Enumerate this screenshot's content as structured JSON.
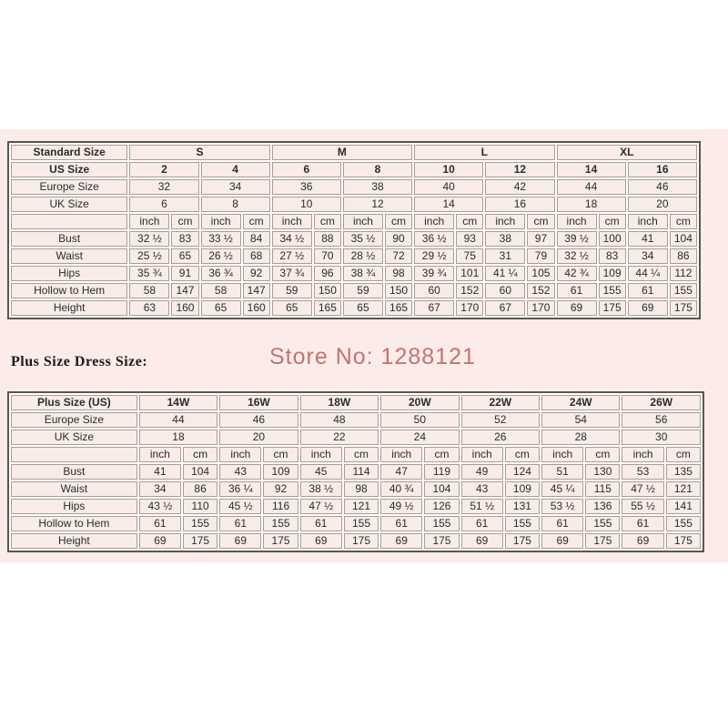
{
  "colors": {
    "panel_bg": "#fcece9",
    "cell_bg": "#f9ece8",
    "grid": "#a89d96",
    "table_border": "#5a5550",
    "watermark": "#c17470"
  },
  "watermark": {
    "text": "Store No: 1288121"
  },
  "plus_heading": "Plus Size Dress Size:",
  "units": {
    "inch": "inch",
    "cm": "cm"
  },
  "standard_table": {
    "corner_label": "Standard Size",
    "group_headers": [
      "S",
      "M",
      "L",
      "XL"
    ],
    "rows_header": [
      {
        "label": "US Size",
        "bold": true,
        "values": [
          "2",
          "4",
          "6",
          "8",
          "10",
          "12",
          "14",
          "16"
        ]
      },
      {
        "label": "Europe Size",
        "bold": false,
        "values": [
          "32",
          "34",
          "36",
          "38",
          "40",
          "42",
          "44",
          "46"
        ]
      },
      {
        "label": "UK Size",
        "bold": false,
        "values": [
          "6",
          "8",
          "10",
          "12",
          "14",
          "16",
          "18",
          "20"
        ]
      }
    ],
    "measure_rows": [
      {
        "label": "Bust",
        "values": [
          "32 ½",
          "83",
          "33 ½",
          "84",
          "34 ½",
          "88",
          "35 ½",
          "90",
          "36 ½",
          "93",
          "38",
          "97",
          "39 ½",
          "100",
          "41",
          "104"
        ]
      },
      {
        "label": "Waist",
        "values": [
          "25 ½",
          "65",
          "26 ½",
          "68",
          "27 ½",
          "70",
          "28 ½",
          "72",
          "29 ½",
          "75",
          "31",
          "79",
          "32 ½",
          "83",
          "34",
          "86"
        ]
      },
      {
        "label": "Hips",
        "values": [
          "35 ¾",
          "91",
          "36 ¾",
          "92",
          "37 ¾",
          "96",
          "38 ¾",
          "98",
          "39 ¾",
          "101",
          "41 ¼",
          "105",
          "42 ¾",
          "109",
          "44 ¼",
          "112"
        ]
      },
      {
        "label": "Hollow to Hem",
        "values": [
          "58",
          "147",
          "58",
          "147",
          "59",
          "150",
          "59",
          "150",
          "60",
          "152",
          "60",
          "152",
          "61",
          "155",
          "61",
          "155"
        ]
      },
      {
        "label": "Height",
        "values": [
          "63",
          "160",
          "65",
          "160",
          "65",
          "165",
          "65",
          "165",
          "67",
          "170",
          "67",
          "170",
          "69",
          "175",
          "69",
          "175"
        ]
      }
    ]
  },
  "plus_table": {
    "corner_label": "Plus Size (US)",
    "group_headers": [
      "14W",
      "16W",
      "18W",
      "20W",
      "22W",
      "24W",
      "26W"
    ],
    "rows_header": [
      {
        "label": "Europe Size",
        "bold": false,
        "values": [
          "44",
          "46",
          "48",
          "50",
          "52",
          "54",
          "56"
        ]
      },
      {
        "label": "UK Size",
        "bold": false,
        "values": [
          "18",
          "20",
          "22",
          "24",
          "26",
          "28",
          "30"
        ]
      }
    ],
    "measure_rows": [
      {
        "label": "Bust",
        "values": [
          "41",
          "104",
          "43",
          "109",
          "45",
          "114",
          "47",
          "119",
          "49",
          "124",
          "51",
          "130",
          "53",
          "135"
        ]
      },
      {
        "label": "Waist",
        "values": [
          "34",
          "86",
          "36 ¼",
          "92",
          "38 ½",
          "98",
          "40 ¾",
          "104",
          "43",
          "109",
          "45 ¼",
          "115",
          "47 ½",
          "121"
        ]
      },
      {
        "label": "Hips",
        "values": [
          "43 ½",
          "110",
          "45 ½",
          "116",
          "47 ½",
          "121",
          "49 ½",
          "126",
          "51 ½",
          "131",
          "53 ½",
          "136",
          "55 ½",
          "141"
        ]
      },
      {
        "label": "Hollow to Hem",
        "values": [
          "61",
          "155",
          "61",
          "155",
          "61",
          "155",
          "61",
          "155",
          "61",
          "155",
          "61",
          "155",
          "61",
          "155"
        ]
      },
      {
        "label": "Height",
        "values": [
          "69",
          "175",
          "69",
          "175",
          "69",
          "175",
          "69",
          "175",
          "69",
          "175",
          "69",
          "175",
          "69",
          "175"
        ]
      }
    ]
  }
}
